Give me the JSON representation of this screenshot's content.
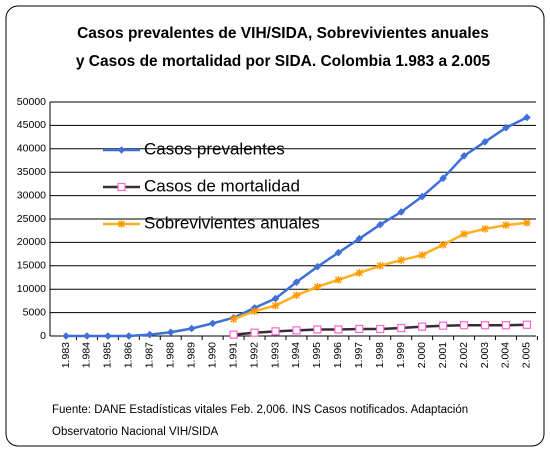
{
  "chart_data": {
    "type": "line",
    "title": [
      "Casos prevalentes de VIH/SIDA, Sobrevivientes anuales",
      "y Casos de mortalidad por SIDA. Colombia 1.983 a 2.005"
    ],
    "categories": [
      "1.983",
      "1.984",
      "1.985",
      "1.986",
      "1.987",
      "1.988",
      "1.989",
      "1.990",
      "1.991",
      "1.992",
      "1.993",
      "1.994",
      "1.995",
      "1.996",
      "1.997",
      "1.998",
      "1.999",
      "2.000",
      "2.001",
      "2.002",
      "2.003",
      "2.004",
      "2.005"
    ],
    "series": [
      {
        "name": "Casos prevalentes",
        "color": "#3f6fd8",
        "marker": "diamond",
        "values": [
          0,
          0,
          0,
          0,
          300,
          800,
          1600,
          2700,
          3900,
          6000,
          8000,
          11500,
          14800,
          17800,
          20800,
          23800,
          26500,
          29800,
          33700,
          38500,
          41500,
          44500,
          46700
        ]
      },
      {
        "name": "Casos de mortalidad",
        "color": "#3b2a3a",
        "marker": "square",
        "values": [
          null,
          null,
          null,
          null,
          null,
          null,
          null,
          null,
          300,
          700,
          1000,
          1200,
          1400,
          1400,
          1500,
          1500,
          1700,
          2000,
          2200,
          2300,
          2300,
          2300,
          2400
        ]
      },
      {
        "name": "Sobrevivientes anuales",
        "color": "#ffb020",
        "marker": "star",
        "values": [
          null,
          null,
          null,
          null,
          null,
          null,
          null,
          null,
          3600,
          5300,
          6500,
          8700,
          10500,
          12000,
          13500,
          15000,
          16200,
          17300,
          19500,
          21800,
          22900,
          23700,
          24200
        ]
      }
    ],
    "ylim": [
      0,
      50000
    ],
    "yticks": [
      0,
      5000,
      10000,
      15000,
      20000,
      25000,
      30000,
      35000,
      40000,
      45000,
      50000
    ],
    "grid": true,
    "legend": "upper left",
    "note": [
      "Fuente: DANE Estadísticas vitales Feb. 2,006. INS Casos notificados. Adaptación",
      "Observatorio Nacional VIH/SIDA"
    ]
  }
}
